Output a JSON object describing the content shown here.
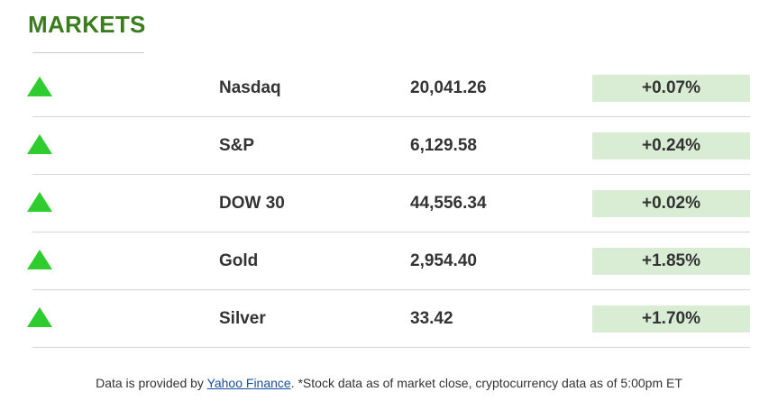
{
  "header": {
    "title": "MARKETS"
  },
  "colors": {
    "title": "#3a7d1e",
    "up_arrow": "#2ecc2e",
    "change_bg": "#d9ecd4",
    "link": "#1a4ea0"
  },
  "markets": [
    {
      "name": "Nasdaq",
      "value": "20,041.26",
      "change": "+0.07%",
      "direction_icon": "up-arrow-icon"
    },
    {
      "name": "S&P",
      "value": "6,129.58",
      "change": "+0.24%",
      "direction_icon": "up-arrow-icon"
    },
    {
      "name": "DOW 30",
      "value": "44,556.34",
      "change": "+0.02%",
      "direction_icon": "up-arrow-icon"
    },
    {
      "name": "Gold",
      "value": "2,954.40",
      "change": "+1.85%",
      "direction_icon": "up-arrow-icon"
    },
    {
      "name": "Silver",
      "value": "33.42",
      "change": "+1.70%",
      "direction_icon": "up-arrow-icon"
    }
  ],
  "footer": {
    "prefix": "Data is provided by ",
    "link_text": "Yahoo Finance",
    "suffix": ". *Stock data as of market close, cryptocurrency data as of 5:00pm ET"
  }
}
